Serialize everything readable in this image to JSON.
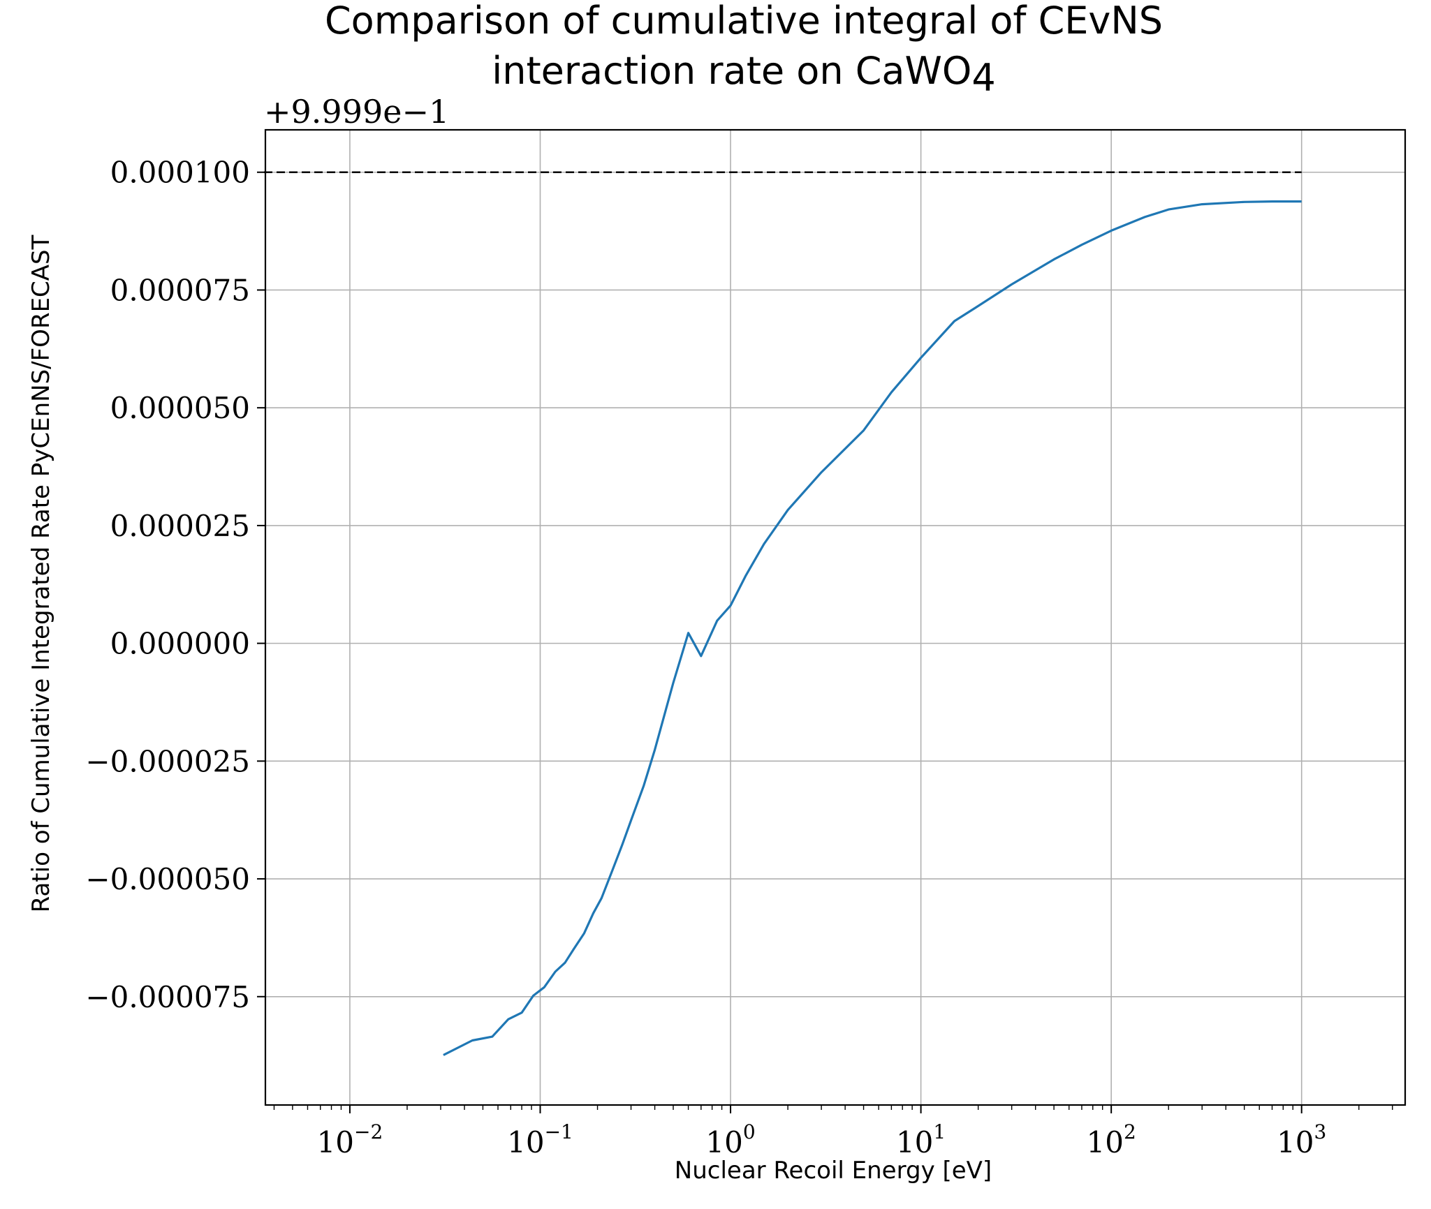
{
  "chart_data": {
    "type": "line",
    "title_line1": "Comparison of cumulative integral of CEvNS",
    "title_line2_prefix": "interaction rate on CaWO",
    "title_line2_sub": "4",
    "xlabel": "Nuclear Recoil Energy [eV]",
    "ylabel": "Ratio of Cumulative Integrated Rate PyCEnNS/FORECAST",
    "y_offset_label": "+9.999e−1",
    "x_scale": "log",
    "xlim": [
      0.0036,
      3500
    ],
    "ylim": [
      -9.8e-05,
      0.000109
    ],
    "grid": true,
    "x_ticks": [
      {
        "value": 0.01,
        "base": "10",
        "exp": "−2"
      },
      {
        "value": 0.1,
        "base": "10",
        "exp": "−1"
      },
      {
        "value": 1,
        "base": "10",
        "exp": "0"
      },
      {
        "value": 10,
        "base": "10",
        "exp": "1"
      },
      {
        "value": 100,
        "base": "10",
        "exp": "2"
      },
      {
        "value": 1000,
        "base": "10",
        "exp": "3"
      }
    ],
    "y_ticks": [
      {
        "value": 0.0001,
        "label": "0.000100"
      },
      {
        "value": 7.5e-05,
        "label": "0.000075"
      },
      {
        "value": 5e-05,
        "label": "0.000050"
      },
      {
        "value": 2.5e-05,
        "label": "0.000025"
      },
      {
        "value": 0,
        "label": "0.000000"
      },
      {
        "value": -2.5e-05,
        "label": "−0.000025"
      },
      {
        "value": -5e-05,
        "label": "−0.000050"
      },
      {
        "value": -7.5e-05,
        "label": "−0.000075"
      }
    ],
    "reference_line": {
      "y": 0.0001,
      "x": [
        0.0036,
        1000
      ],
      "style": "dashed",
      "color": "#000000"
    },
    "series": [
      {
        "color": "#1f77b4",
        "x": [
          0.031,
          0.044,
          0.056,
          0.068,
          0.08,
          0.092,
          0.105,
          0.12,
          0.135,
          0.15,
          0.17,
          0.19,
          0.21,
          0.24,
          0.27,
          0.3,
          0.35,
          0.4,
          0.5,
          0.6,
          0.7,
          0.85,
          1.0,
          1.2,
          1.5,
          2.0,
          3.0,
          5.0,
          7.0,
          10.0,
          15.0,
          20.0,
          30.0,
          50.0,
          70.0,
          100.0,
          150.0,
          200.0,
          300.0,
          500.0,
          700.0,
          1000.0
        ],
        "y": [
          -8.74e-05,
          -8.43e-05,
          -8.35e-05,
          -7.98e-05,
          -7.84e-05,
          -7.48e-05,
          -7.3e-05,
          -6.97e-05,
          -6.78e-05,
          -6.49e-05,
          -6.16e-05,
          -5.73e-05,
          -5.41e-05,
          -4.81e-05,
          -4.27e-05,
          -3.76e-05,
          -3.02e-05,
          -2.26e-05,
          -8.4e-06,
          2.2e-06,
          -2.7e-06,
          4.8e-06,
          8e-06,
          1.43e-05,
          2.11e-05,
          2.83e-05,
          3.63e-05,
          4.52e-05,
          5.33e-05,
          6.06e-05,
          6.84e-05,
          7.16e-05,
          7.62e-05,
          8.15e-05,
          8.46e-05,
          8.76e-05,
          9.05e-05,
          9.21e-05,
          9.32e-05,
          9.37e-05,
          9.38e-05,
          9.38e-05
        ]
      }
    ]
  }
}
